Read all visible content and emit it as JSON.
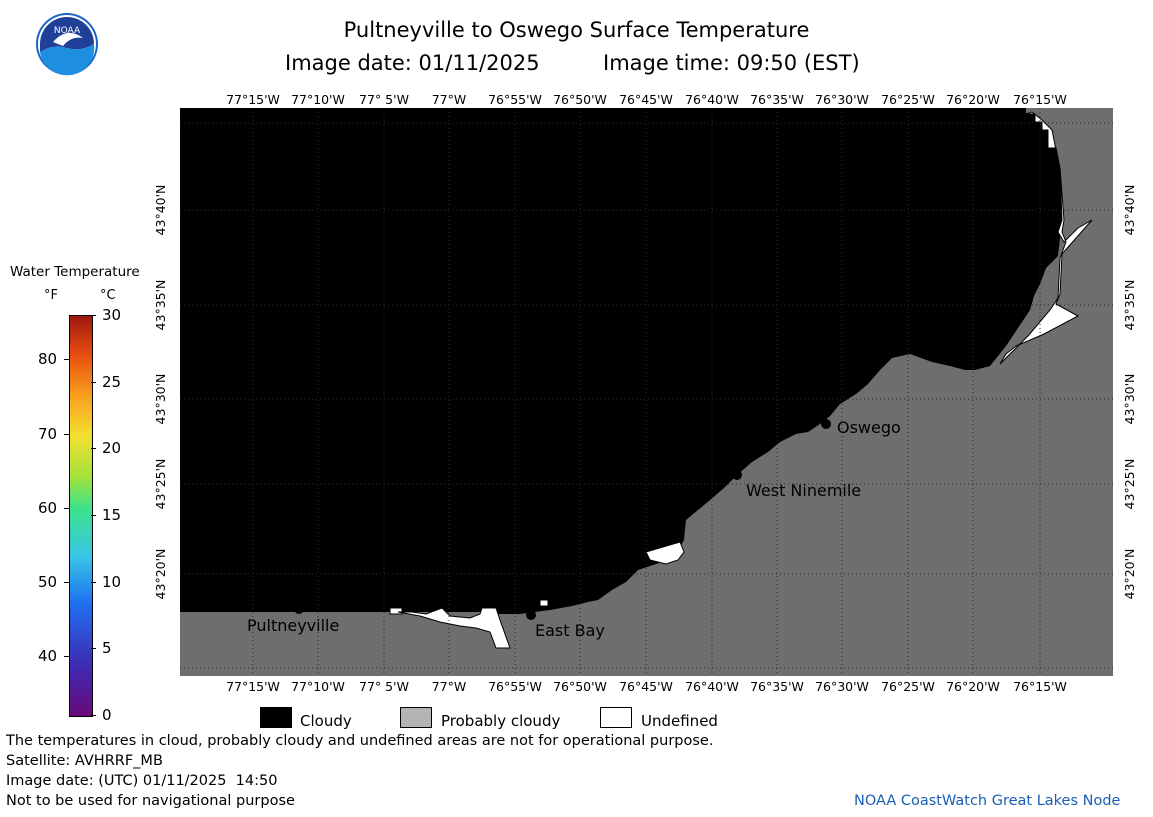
{
  "title": "Pultneyville to Oswego Surface Temperature",
  "image_date_label": "Image date: 01/11/2025",
  "image_time_label": "Image time: 09:50 (EST)",
  "colorbar": {
    "title": "Water Temperature",
    "unit_f": "°F",
    "unit_c": "°C",
    "f_ticks": [
      "80",
      "70",
      "60",
      "50",
      "40"
    ],
    "c_ticks": [
      "30",
      "25",
      "20",
      "15",
      "10",
      "5",
      "0"
    ]
  },
  "lon_ticks": [
    "77°15'W",
    "77°10'W",
    "77° 5'W",
    "77°W",
    "76°55'W",
    "76°50'W",
    "76°45'W",
    "76°40'W",
    "76°35'W",
    "76°30'W",
    "76°25'W",
    "76°20'W",
    "76°15'W"
  ],
  "lat_ticks": [
    "43°40'N",
    "43°35'N",
    "43°30'N",
    "43°25'N",
    "43°20'N"
  ],
  "places": [
    {
      "name": "Pultneyville"
    },
    {
      "name": "East Bay"
    },
    {
      "name": "West Ninemile"
    },
    {
      "name": "Oswego"
    }
  ],
  "legend": {
    "cloudy": "Cloudy",
    "probably_cloudy": "Probably cloudy",
    "undefined": "Undefined",
    "colors": {
      "cloudy": "#000000",
      "probably_cloudy": "#b4b4b4",
      "undefined": "#ffffff",
      "land": "#6e6e6e"
    }
  },
  "footer": {
    "note": "The temperatures in cloud, probably cloudy and undefined areas are not for operational purpose.",
    "satellite": "Satellite: AVHRRF_MB",
    "utc_date": "Image date: (UTC) 01/11/2025  14:50",
    "nav_warning": "Not to be used for navigational purpose",
    "credit": "NOAA CoastWatch Great Lakes Node"
  },
  "logo_text": "NOAA"
}
